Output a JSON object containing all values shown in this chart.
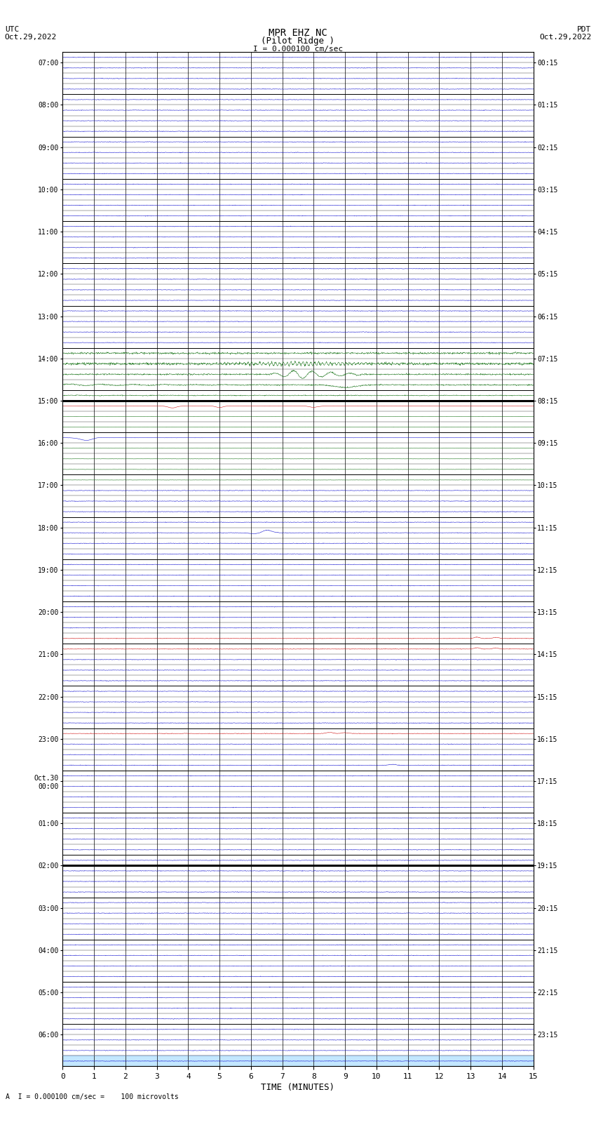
{
  "title_line1": "MPR EHZ NC",
  "title_line2": "(Pilot Ridge )",
  "title_scale": "I = 0.000100 cm/sec",
  "left_label_top": "UTC",
  "left_label_date": "Oct.29,2022",
  "right_label_top": "PDT",
  "right_label_date": "Oct.29,2022",
  "bottom_label": "TIME (MINUTES)",
  "scale_label": "A  I = 0.000100 cm/sec =    100 microvolts",
  "bg_color": "#ffffff",
  "line_color_blue": "#0000cc",
  "line_color_green": "#006600",
  "line_color_red": "#cc0000",
  "grid_color_major": "#000000",
  "grid_color_minor": "#000000",
  "noise_amplitude": 0.012,
  "highlight_color": "#aaddff",
  "hour_labels_left": [
    "07:00",
    "08:00",
    "09:00",
    "10:00",
    "11:00",
    "12:00",
    "13:00",
    "14:00",
    "15:00",
    "16:00",
    "17:00",
    "18:00",
    "19:00",
    "20:00",
    "21:00",
    "22:00",
    "23:00",
    "Oct.30\n00:00",
    "01:00",
    "02:00",
    "03:00",
    "04:00",
    "05:00",
    "06:00"
  ],
  "hour_labels_right": [
    "00:15",
    "01:15",
    "02:15",
    "03:15",
    "04:15",
    "05:15",
    "06:15",
    "07:15",
    "08:15",
    "09:15",
    "10:15",
    "11:15",
    "12:15",
    "13:15",
    "14:15",
    "15:15",
    "16:15",
    "17:15",
    "18:15",
    "19:15",
    "20:15",
    "21:15",
    "22:15",
    "23:15"
  ],
  "n_rows": 96,
  "n_cols": 15,
  "minutes_per_row": 15,
  "rows_per_hour": 4
}
